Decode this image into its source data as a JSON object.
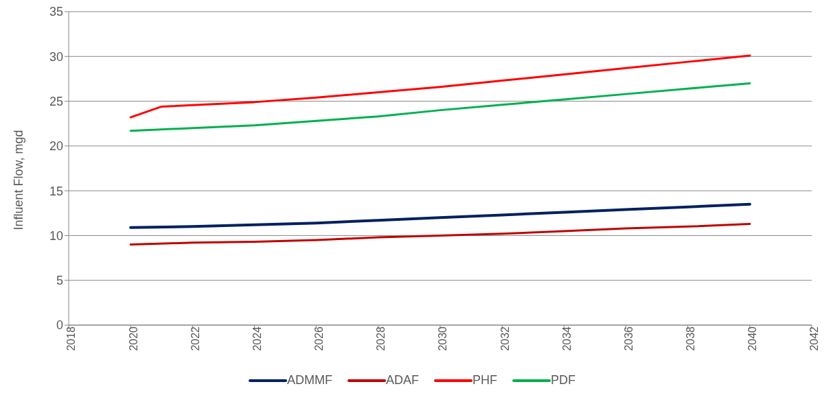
{
  "chart_data": {
    "type": "line",
    "ylabel": "Influent Flow, mgd",
    "xlim": [
      2018,
      2042
    ],
    "xticks": [
      2018,
      2020,
      2022,
      2024,
      2026,
      2028,
      2030,
      2032,
      2034,
      2036,
      2038,
      2040,
      2042
    ],
    "ylim": [
      0,
      35
    ],
    "yticks": [
      0,
      5,
      10,
      15,
      20,
      25,
      30,
      35
    ],
    "grid": "y",
    "legend": "bottom",
    "marker": "none",
    "x": [
      2020,
      2022,
      2024,
      2026,
      2028,
      2030,
      2032,
      2034,
      2036,
      2038,
      2040
    ],
    "series": [
      {
        "name": "ADMMF",
        "color": "#002060",
        "values": [
          10.9,
          11.0,
          11.2,
          11.4,
          11.7,
          12.0,
          12.3,
          12.6,
          12.9,
          13.2,
          13.5
        ]
      },
      {
        "name": "ADAF",
        "color": "#c00000",
        "values": [
          9.0,
          9.2,
          9.3,
          9.5,
          9.8,
          10.0,
          10.2,
          10.5,
          10.8,
          11.0,
          11.3
        ]
      },
      {
        "name": "PHF",
        "color": "#ff0000",
        "x": [
          2020,
          2021,
          2024,
          2026,
          2028,
          2030,
          2032,
          2034,
          2036,
          2038,
          2040
        ],
        "values": [
          23.2,
          24.4,
          24.9,
          25.4,
          26.0,
          26.6,
          27.3,
          28.0,
          28.7,
          29.4,
          30.1
        ]
      },
      {
        "name": "PDF",
        "color": "#00b050",
        "values": [
          21.7,
          22.0,
          22.3,
          22.8,
          23.3,
          24.0,
          24.6,
          25.2,
          25.8,
          26.4,
          27.0
        ]
      }
    ]
  }
}
